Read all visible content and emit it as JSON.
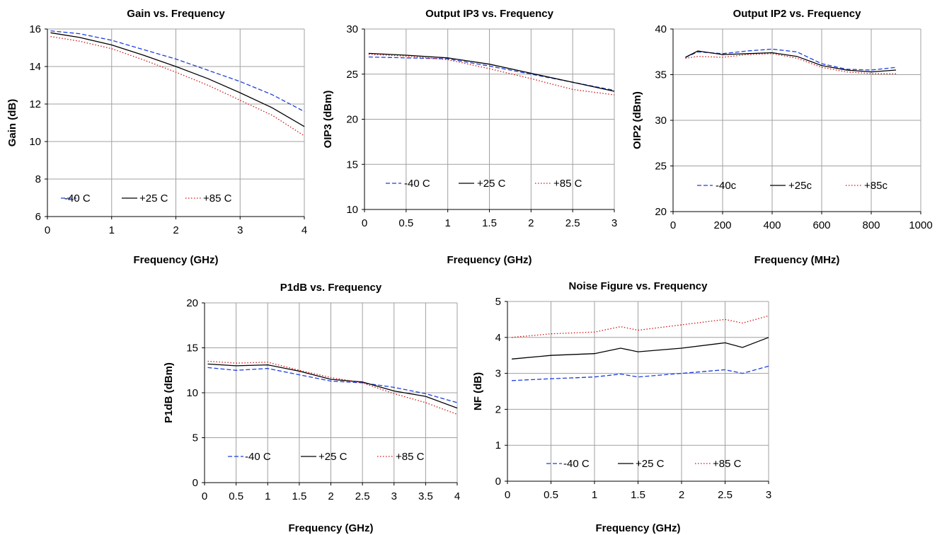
{
  "colors": {
    "series_cold": "#1f3fdc",
    "series_room": "#000000",
    "series_hot": "#d21414",
    "grid": "#a0a0a0",
    "axis": "#000000"
  },
  "chart_data": [
    {
      "type": "line",
      "title": "Gain vs. Frequency",
      "xlabel": "Frequency (GHz)",
      "ylabel": "Gain (dB)",
      "xlim": [
        0,
        4
      ],
      "ylim": [
        6,
        16
      ],
      "xticks": [
        "0",
        "1",
        "2",
        "3",
        "4"
      ],
      "yticks": [
        "6",
        "8",
        "10",
        "12",
        "14",
        "16"
      ],
      "grid": true,
      "legend_position": "bottom-left",
      "series": [
        {
          "name": "-40 C",
          "style": "dash",
          "x": [
            0.05,
            0.5,
            1.0,
            1.5,
            2.0,
            2.5,
            3.0,
            3.5,
            4.0
          ],
          "y": [
            15.9,
            15.75,
            15.4,
            14.9,
            14.4,
            13.8,
            13.2,
            12.5,
            11.6
          ]
        },
        {
          "name": "+25 C",
          "style": "solid",
          "x": [
            0.05,
            0.5,
            1.0,
            1.5,
            2.0,
            2.5,
            3.0,
            3.5,
            4.0
          ],
          "y": [
            15.8,
            15.55,
            15.15,
            14.6,
            14.0,
            13.35,
            12.6,
            11.8,
            10.8
          ]
        },
        {
          "name": "+85 C",
          "style": "dot",
          "x": [
            0.05,
            0.5,
            1.0,
            1.5,
            2.0,
            2.5,
            3.0,
            3.5,
            4.0
          ],
          "y": [
            15.6,
            15.35,
            14.95,
            14.35,
            13.7,
            13.0,
            12.2,
            11.4,
            10.3
          ]
        }
      ]
    },
    {
      "type": "line",
      "title": "Output IP3 vs. Frequency",
      "xlabel": "Frequency (GHz)",
      "ylabel": "OIP3 (dBm)",
      "xlim": [
        0,
        3
      ],
      "ylim": [
        10,
        30
      ],
      "xticks": [
        "0",
        "0.5",
        "1",
        "1.5",
        "2",
        "2.5",
        "3"
      ],
      "yticks": [
        "10",
        "15",
        "20",
        "25",
        "30"
      ],
      "grid": true,
      "legend_position": "bottom",
      "series": [
        {
          "name": "-40 C",
          "style": "dash",
          "x": [
            0.05,
            0.5,
            1.0,
            1.5,
            2.0,
            2.5,
            3.0
          ],
          "y": [
            26.9,
            26.8,
            26.7,
            25.9,
            25.0,
            24.1,
            23.2
          ]
        },
        {
          "name": "+25 C",
          "style": "solid",
          "x": [
            0.05,
            0.5,
            1.0,
            1.5,
            2.0,
            2.5,
            3.0
          ],
          "y": [
            27.3,
            27.1,
            26.8,
            26.1,
            25.1,
            24.1,
            23.1
          ]
        },
        {
          "name": "+85 C",
          "style": "dot",
          "x": [
            0.05,
            0.5,
            1.0,
            1.5,
            2.0,
            2.5,
            3.0
          ],
          "y": [
            27.2,
            27.0,
            26.6,
            25.6,
            24.5,
            23.3,
            22.7
          ]
        }
      ]
    },
    {
      "type": "line",
      "title": "Output IP2 vs. Frequency",
      "xlabel": "Frequency (MHz)",
      "ylabel": "OIP2 (dBm)",
      "xlim": [
        0,
        1000
      ],
      "ylim": [
        20,
        40
      ],
      "xticks": [
        "0",
        "200",
        "400",
        "600",
        "800",
        "1000"
      ],
      "yticks": [
        "20",
        "25",
        "30",
        "35",
        "40"
      ],
      "grid": true,
      "legend_position": "bottom",
      "series": [
        {
          "name": "-40c",
          "style": "dash",
          "x": [
            50,
            100,
            200,
            300,
            400,
            500,
            600,
            700,
            800,
            900
          ],
          "y": [
            36.9,
            37.5,
            37.3,
            37.6,
            37.8,
            37.5,
            36.2,
            35.6,
            35.5,
            35.8
          ]
        },
        {
          "name": "+25c",
          "style": "solid",
          "x": [
            50,
            100,
            200,
            300,
            400,
            500,
            600,
            700,
            800,
            900
          ],
          "y": [
            36.9,
            37.6,
            37.2,
            37.3,
            37.4,
            37.0,
            36.0,
            35.5,
            35.3,
            35.5
          ]
        },
        {
          "name": "+85c",
          "style": "dot",
          "x": [
            50,
            100,
            200,
            300,
            400,
            500,
            600,
            700,
            800,
            900
          ],
          "y": [
            36.8,
            37.0,
            36.9,
            37.2,
            37.3,
            36.8,
            35.8,
            35.3,
            35.1,
            35.1
          ]
        }
      ]
    },
    {
      "type": "line",
      "title": "P1dB vs. Frequency",
      "xlabel": "Frequency (GHz)",
      "ylabel": "P1dB (dBm)",
      "xlim": [
        0,
        4
      ],
      "ylim": [
        0,
        20
      ],
      "xticks": [
        "0",
        "0.5",
        "1",
        "1.5",
        "2",
        "2.5",
        "3",
        "3.5",
        "4"
      ],
      "yticks": [
        "0",
        "5",
        "10",
        "15",
        "20"
      ],
      "grid": true,
      "legend_position": "bottom",
      "series": [
        {
          "name": "-40 C",
          "style": "dash",
          "x": [
            0.05,
            0.5,
            1.0,
            1.5,
            2.0,
            2.5,
            3.0,
            3.5,
            4.0
          ],
          "y": [
            12.8,
            12.5,
            12.7,
            12.0,
            11.3,
            11.1,
            10.6,
            9.9,
            8.9
          ]
        },
        {
          "name": "+25 C",
          "style": "solid",
          "x": [
            0.05,
            0.5,
            1.0,
            1.5,
            2.0,
            2.5,
            3.0,
            3.5,
            4.0
          ],
          "y": [
            13.2,
            13.0,
            13.1,
            12.4,
            11.5,
            11.2,
            10.2,
            9.6,
            8.3
          ]
        },
        {
          "name": "+85 C",
          "style": "dot",
          "x": [
            0.05,
            0.5,
            1.0,
            1.5,
            2.0,
            2.5,
            3.0,
            3.5,
            4.0
          ],
          "y": [
            13.5,
            13.3,
            13.4,
            12.5,
            11.7,
            11.1,
            9.9,
            8.9,
            7.6
          ]
        }
      ]
    },
    {
      "type": "line",
      "title": "Noise Figure vs. Frequency",
      "xlabel": "Frequency (GHz)",
      "ylabel": "NF (dB)",
      "xlim": [
        0,
        3
      ],
      "ylim": [
        0,
        5
      ],
      "xticks": [
        "0",
        "0.5",
        "1",
        "1.5",
        "2",
        "2.5",
        "3"
      ],
      "yticks": [
        "0",
        "1",
        "2",
        "3",
        "4",
        "5"
      ],
      "grid": true,
      "legend_position": "bottom",
      "series": [
        {
          "name": "-40 C",
          "style": "dash",
          "x": [
            0.05,
            0.5,
            1.0,
            1.3,
            1.5,
            2.0,
            2.5,
            2.7,
            3.0
          ],
          "y": [
            2.8,
            2.85,
            2.9,
            2.98,
            2.9,
            3.0,
            3.1,
            3.0,
            3.2
          ]
        },
        {
          "name": "+25 C",
          "style": "solid",
          "x": [
            0.05,
            0.5,
            1.0,
            1.3,
            1.5,
            2.0,
            2.5,
            2.7,
            3.0
          ],
          "y": [
            3.4,
            3.5,
            3.55,
            3.7,
            3.6,
            3.7,
            3.85,
            3.72,
            4.0
          ]
        },
        {
          "name": "+85 C",
          "style": "dot",
          "x": [
            0.05,
            0.5,
            1.0,
            1.3,
            1.5,
            2.0,
            2.5,
            2.7,
            3.0
          ],
          "y": [
            4.0,
            4.1,
            4.15,
            4.3,
            4.2,
            4.35,
            4.5,
            4.4,
            4.6
          ]
        }
      ]
    }
  ]
}
